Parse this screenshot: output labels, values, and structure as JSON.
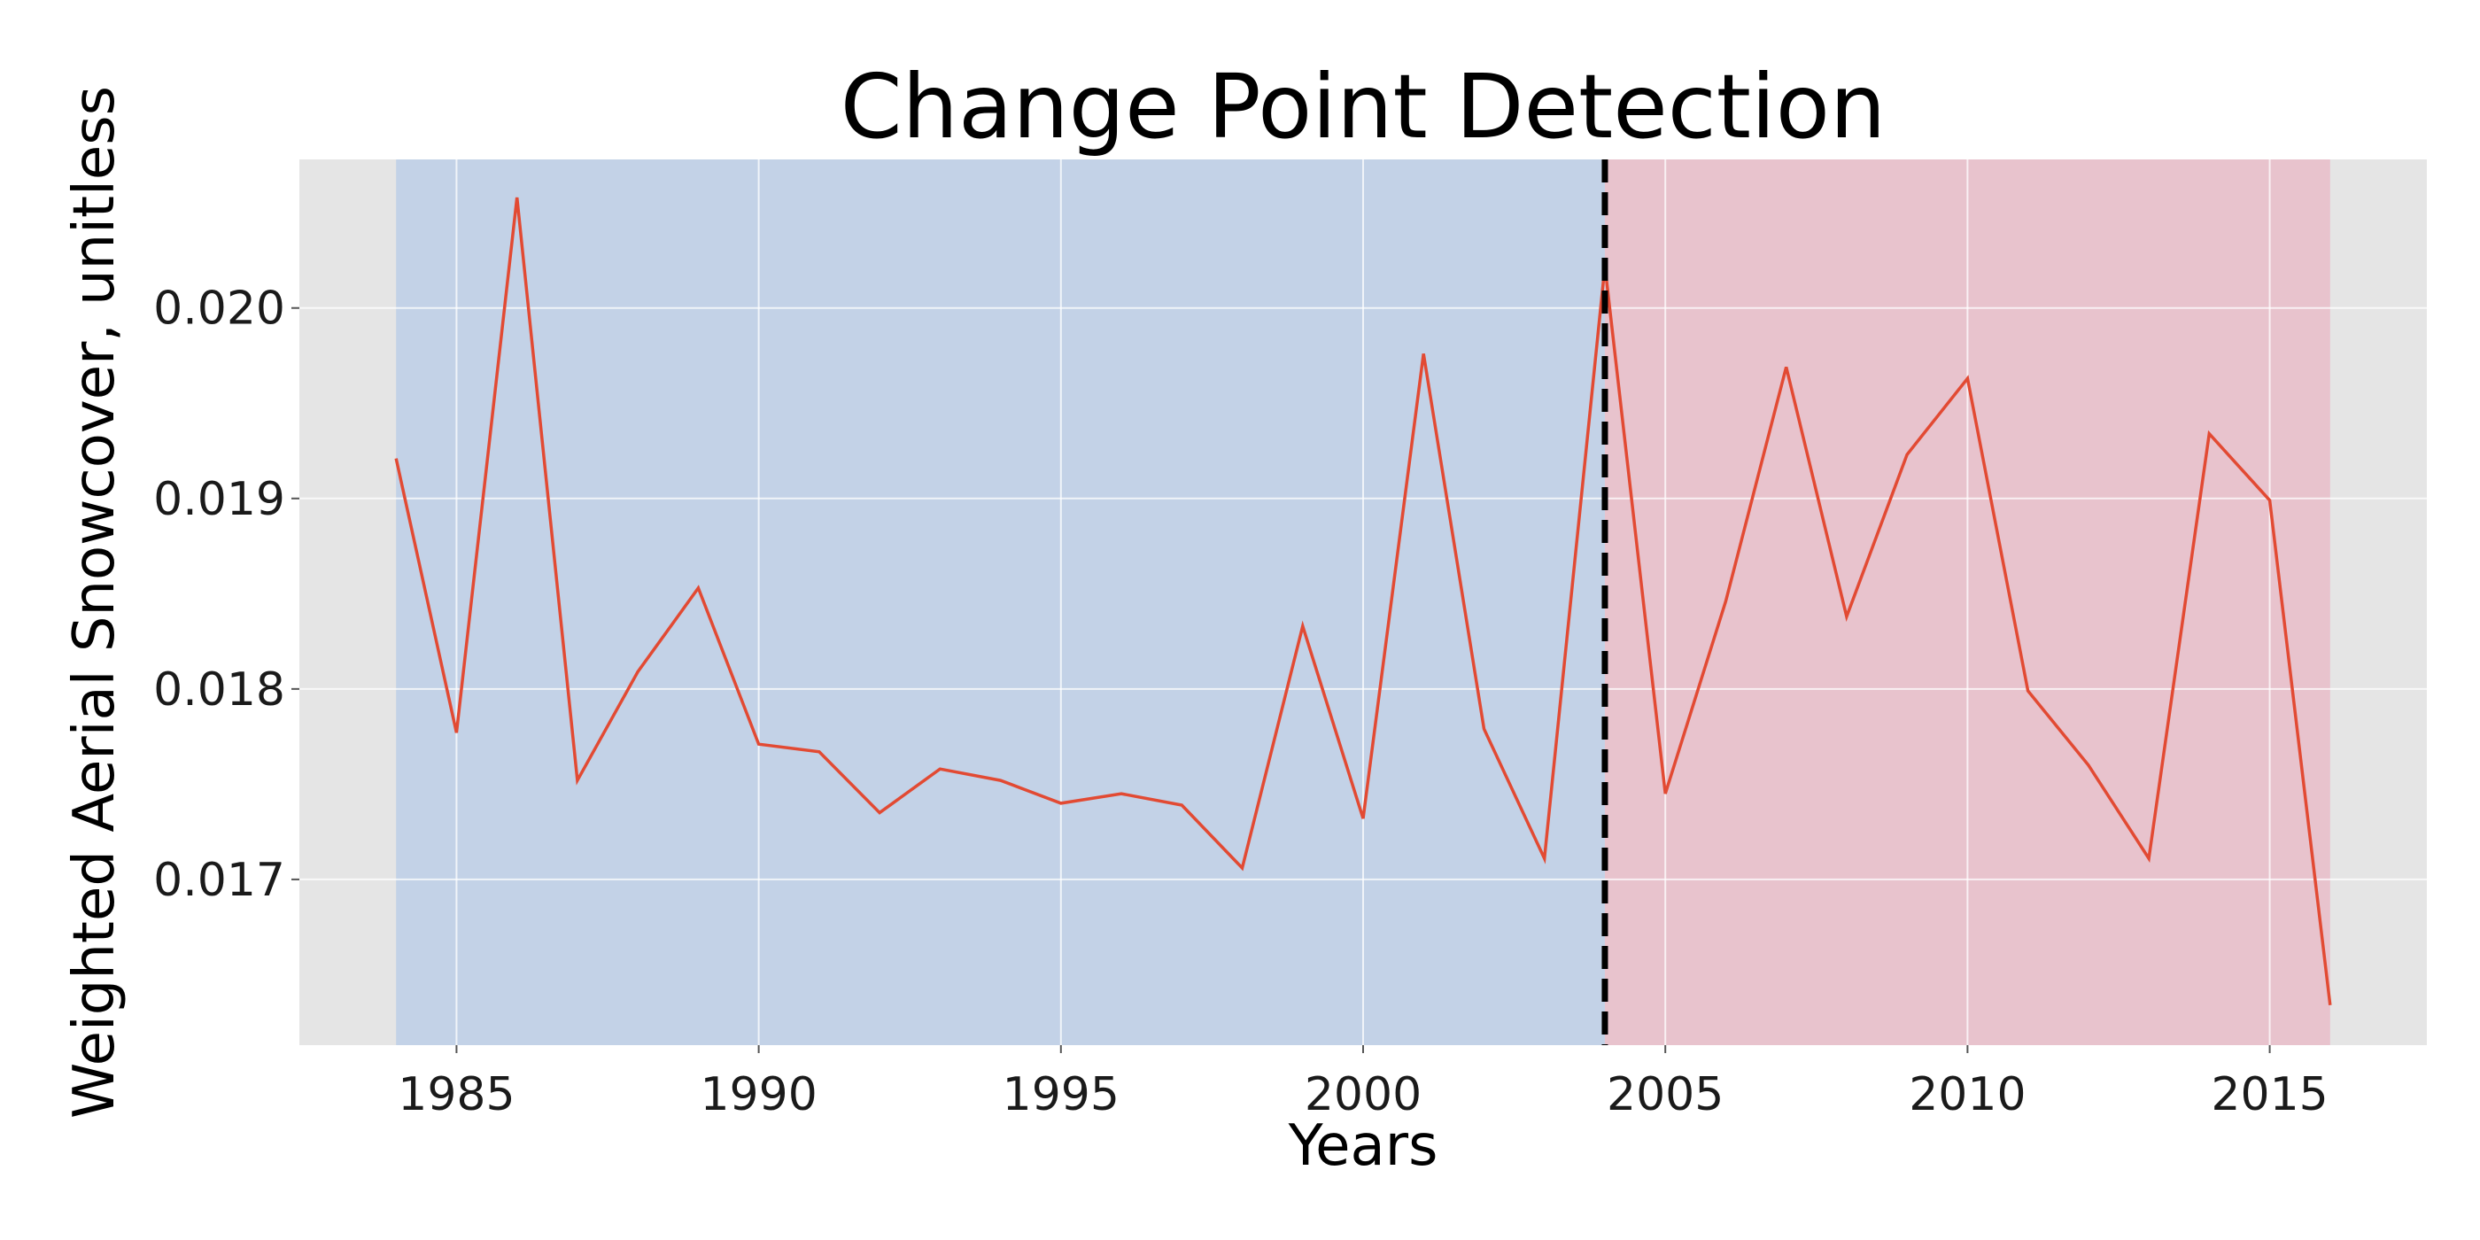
{
  "chart_data": {
    "type": "line",
    "title": "Change Point Detection",
    "xlabel": "Years",
    "ylabel": "Weighted Aerial Snowcover, unitless",
    "xlim": [
      1982.4,
      2017.6
    ],
    "ylim": [
      0.01613,
      0.02078
    ],
    "x_ticks": [
      1985,
      1990,
      1995,
      2000,
      2005,
      2010,
      2015
    ],
    "y_ticks": [
      0.017,
      0.018,
      0.019,
      0.02
    ],
    "grid": true,
    "legend": "none",
    "colors": {
      "plot_background": "#e5e5e5",
      "segment_1": "#c3d2e7",
      "segment_2": "#e8c3cd",
      "line": "#e24a33",
      "change_point": "#000000",
      "grid": "#ffffff"
    },
    "segments": [
      {
        "start": 1984,
        "end": 2004
      },
      {
        "start": 2004,
        "end": 2016
      }
    ],
    "change_point": 2004,
    "series": [
      {
        "x": [
          1984,
          1985,
          1986,
          1987,
          1988,
          1989,
          1990,
          1991,
          1992,
          1993,
          1994,
          1995,
          1996,
          1997,
          1998,
          1999,
          2000,
          2001,
          2002,
          2003,
          2004,
          2005,
          2006,
          2007,
          2008,
          2009,
          2010,
          2011,
          2012,
          2013,
          2014,
          2015,
          2016
        ],
        "values": [
          0.01921,
          0.01777,
          0.02058,
          0.01752,
          0.01809,
          0.01853,
          0.01771,
          0.01767,
          0.01735,
          0.01758,
          0.01752,
          0.0174,
          0.01745,
          0.01739,
          0.01706,
          0.01833,
          0.01732,
          0.01976,
          0.01779,
          0.01711,
          0.02022,
          0.01745,
          0.01846,
          0.01969,
          0.01838,
          0.01923,
          0.01963,
          0.01799,
          0.0176,
          0.01711,
          0.01934,
          0.01899,
          0.01634
        ]
      }
    ]
  }
}
